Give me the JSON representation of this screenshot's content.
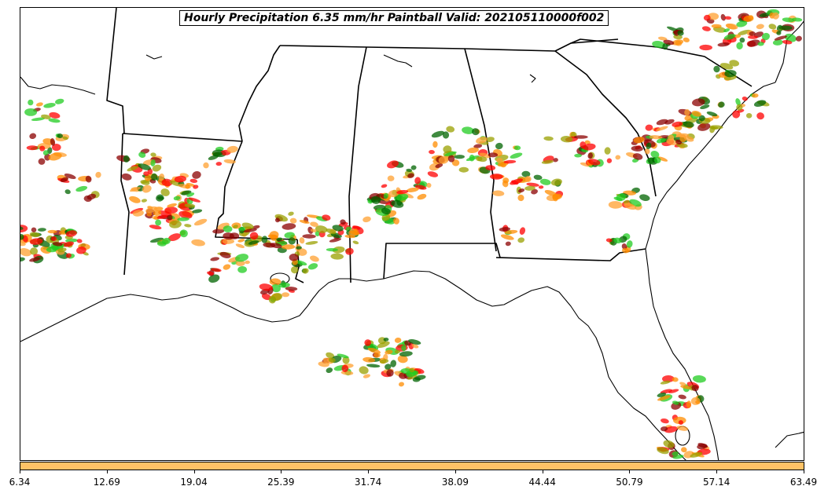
{
  "title": "Hourly Precipitation 6.35 mm/hr Paintball Valid: 202105110000f002",
  "colorbar": {
    "color": "#ffc266",
    "ticks": [
      "6.34",
      "12.69",
      "19.04",
      "25.39",
      "31.74",
      "38.09",
      "44.44",
      "50.79",
      "57.14",
      "63.49"
    ]
  },
  "colors": {
    "paint": [
      "#ff0000",
      "#ff8c00",
      "#22cc22",
      "#006400",
      "#8b0000",
      "#9aa000",
      "#ffa030"
    ],
    "boundary": "#000000"
  }
}
